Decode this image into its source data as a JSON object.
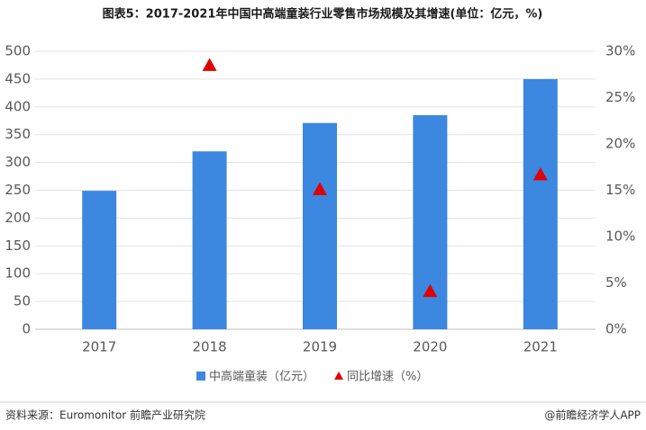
{
  "chart_data": {
    "type": "bar",
    "title": "图表5：2017-2021年中国中高端童装行业零售市场规模及其增速(单位：亿元，%)",
    "categories": [
      "2017",
      "2018",
      "2019",
      "2020",
      "2021"
    ],
    "series": [
      {
        "name": "中高端童装（亿元）",
        "color": "#3c87e0",
        "type": "bar",
        "values": [
          249,
          320,
          371,
          385,
          450
        ]
      },
      {
        "name": "同比增速（%）",
        "color": "#e00000",
        "type": "scatter",
        "axis": "y2",
        "values": [
          null,
          28.5,
          15.1,
          4.1,
          16.7
        ]
      }
    ],
    "ylim": [
      0,
      500
    ],
    "yticks": [
      0,
      50,
      100,
      150,
      200,
      250,
      300,
      350,
      400,
      450,
      500
    ],
    "y2lim": [
      0,
      30
    ],
    "y2ticks": [
      {
        "value": 0,
        "label": "0%"
      },
      {
        "value": 5,
        "label": "5%"
      },
      {
        "value": 10,
        "label": "10%"
      },
      {
        "value": 15,
        "label": "15%"
      },
      {
        "value": 20,
        "label": "20%"
      },
      {
        "value": 25,
        "label": "25%"
      },
      {
        "value": 30,
        "label": "30%"
      }
    ],
    "grid": true,
    "legend": "bottom",
    "source": "资料来源：Euromonitor 前瞻产业研究院",
    "credit": "@前瞻经济学人APP"
  }
}
